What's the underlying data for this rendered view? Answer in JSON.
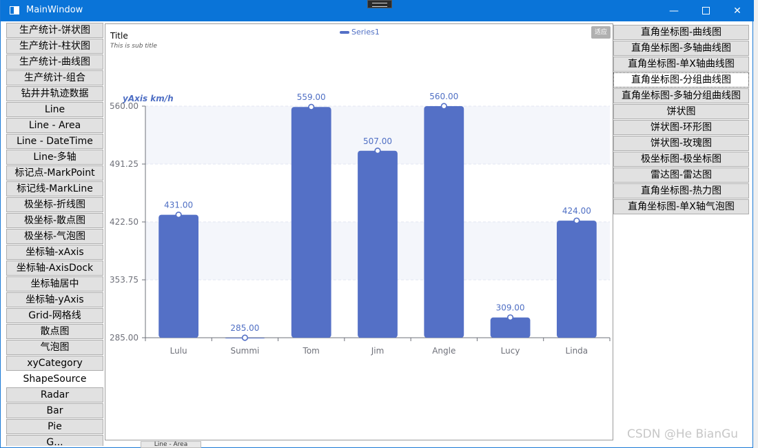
{
  "window": {
    "title": "MainWindow"
  },
  "left_nav": [
    "生产统计-饼状图",
    "生产统计-柱状图",
    "生产统计-曲线图",
    "生产统计-组合",
    "钻井井轨迹数据",
    "Line",
    "Line - Area",
    "Line - DateTime",
    "Line-多轴",
    "标记点-MarkPoint",
    "标记线-MarkLine",
    "极坐标-折线图",
    "极坐标-散点图",
    "极坐标-气泡图",
    "坐标轴-xAxis",
    "坐标轴-AxisDock",
    "坐标轴居中",
    "坐标轴-yAxis",
    "Grid-网格线",
    "散点图",
    "气泡图",
    "xyCategory",
    "ShapeSource",
    "Radar",
    "Bar",
    "Pie",
    "G..."
  ],
  "left_nav_selected": "ShapeSource",
  "right_nav": [
    "直角坐标图-曲线图",
    "直角坐标图-多轴曲线图",
    "直角坐标图-单X轴曲线图",
    "直角坐标图-分组曲线图",
    "直角坐标图-多轴分组曲线图",
    "饼状图",
    "饼状图-环形图",
    "饼状图-玫瑰图",
    "极坐标图-极坐标图",
    "雷达图-雷达图",
    "直角坐标图-热力图",
    "直角坐标图-单X轴气泡图"
  ],
  "right_nav_focused": "直角坐标图-分组曲线图",
  "fit_button": "适应",
  "watermark": "CSDN @He BianGu",
  "background_strip": "Line - Area",
  "chart_data": {
    "type": "bar",
    "title": "Title",
    "subtitle": "This is sub title",
    "ylabel": "yAxis km/h",
    "xlabel": "",
    "categories": [
      "Lulu",
      "Summi",
      "Tom",
      "Jim",
      "Angle",
      "Lucy",
      "Linda"
    ],
    "series": [
      {
        "name": "Series1",
        "values": [
          431.0,
          285.0,
          559.0,
          507.0,
          560.0,
          309.0,
          424.0
        ]
      }
    ],
    "ylim": [
      285.0,
      560.0
    ],
    "yticks": [
      "285.00",
      "353.75",
      "422.50",
      "491.25",
      "560.00"
    ],
    "data_labels": [
      "431.00",
      "285.00",
      "559.00",
      "507.00",
      "560.00",
      "309.00",
      "424.00"
    ],
    "legend": "top-center",
    "grid": true,
    "color": "#5470c6"
  }
}
